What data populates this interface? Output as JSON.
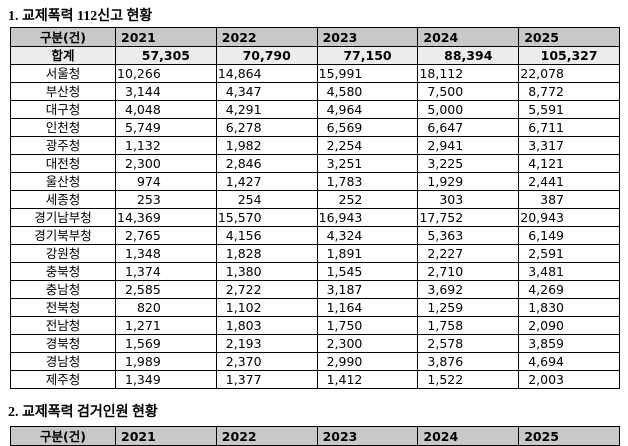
{
  "title1": "1. 교제폭력 112신고 현황",
  "table1": {
    "header": [
      "구분(건)",
      "2021",
      "2022",
      "2023",
      "2024",
      "2025"
    ],
    "rows": [
      [
        "합계",
        "57,305",
        "70,790",
        "77,150",
        "88,394",
        "105,327"
      ],
      [
        "서울청",
        "10,266",
        "14,864",
        "15,991",
        "18,112",
        "22,078"
      ],
      [
        "부산청",
        "3,144",
        "4,347",
        "4,580",
        "7,500",
        "8,772"
      ],
      [
        "대구청",
        "4,048",
        "4,291",
        "4,964",
        "5,000",
        "5,591"
      ],
      [
        "인천청",
        "5,749",
        "6,278",
        "6,569",
        "6,647",
        "6,711"
      ],
      [
        "광주청",
        "1,132",
        "1,982",
        "2,254",
        "2,941",
        "3,317"
      ],
      [
        "대전청",
        "2,300",
        "2,846",
        "3,251",
        "3,225",
        "4,121"
      ],
      [
        "울산청",
        "974",
        "1,427",
        "1,783",
        "1,929",
        "2,441"
      ],
      [
        "세종청",
        "253",
        "254",
        "252",
        "303",
        "387"
      ],
      [
        "경기남부청",
        "14,369",
        "15,570",
        "16,943",
        "17,752",
        "20,943"
      ],
      [
        "경기북부청",
        "2,765",
        "4,156",
        "4,324",
        "5,363",
        "6,149"
      ],
      [
        "강원청",
        "1,348",
        "1,828",
        "1,891",
        "2,227",
        "2,591"
      ],
      [
        "충북청",
        "1,374",
        "1,380",
        "1,545",
        "2,710",
        "3,481"
      ],
      [
        "충남청",
        "2,585",
        "2,722",
        "3,187",
        "3,692",
        "4,269"
      ],
      [
        "전북청",
        "820",
        "1,102",
        "1,164",
        "1,259",
        "1,830"
      ],
      [
        "전남청",
        "1,271",
        "1,803",
        "1,750",
        "1,758",
        "2,090"
      ],
      [
        "경북청",
        "1,569",
        "2,193",
        "2,300",
        "2,578",
        "3,859"
      ],
      [
        "경남청",
        "1,989",
        "2,370",
        "2,990",
        "3,876",
        "4,694"
      ],
      [
        "제주청",
        "1,349",
        "1,377",
        "1,412",
        "1,522",
        "2,003"
      ]
    ]
  },
  "title2": "2. 교제폭력 검거인원 현황",
  "table2": {
    "header": [
      "구분(건)",
      "2021",
      "2022",
      "2023",
      "2024",
      "2025"
    ]
  }
}
